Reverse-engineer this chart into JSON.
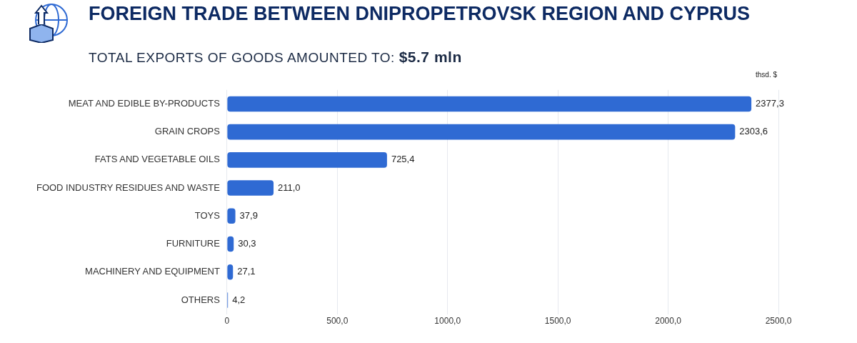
{
  "chart_data": {
    "type": "bar",
    "orientation": "horizontal",
    "title": "FOREIGN TRADE BETWEEN DNIPROPETROVSK REGION AND CYPRUS",
    "subtitle": "TOTAL EXPORTS OF GOODS AMOUNTED TO: $5.7 mln",
    "annotations": [
      "thsd. $"
    ],
    "categories": [
      "MEAT AND EDIBLE BY-PRODUCTS",
      "GRAIN CROPS",
      "FATS AND VEGETABLE OILS",
      "FOOD INDUSTRY RESIDUES AND WASTE",
      "TOYS",
      "FURNITURE",
      "MACHINERY AND EQUIPMENT",
      "OTHERS"
    ],
    "values": [
      2377.3,
      2303.6,
      725.4,
      211.0,
      37.9,
      30.3,
      27.1,
      4.2
    ],
    "value_labels": [
      "2377,3",
      "2303,6",
      "725,4",
      "211,0",
      "37,9",
      "30,3",
      "27,1",
      "4,2"
    ],
    "color": "#2f6ad3",
    "xlim": [
      0,
      2500
    ],
    "xticks": [
      0,
      {
        "value": 500,
        "label": "500,0"
      },
      {
        "value": 1000,
        "label": "1000,0"
      },
      {
        "value": 1500,
        "label": "1500,0"
      },
      {
        "value": 2000,
        "label": "2000,0"
      },
      {
        "value": 2500,
        "label": "2500,0"
      }
    ],
    "grid": "x",
    "legend": false
  }
}
